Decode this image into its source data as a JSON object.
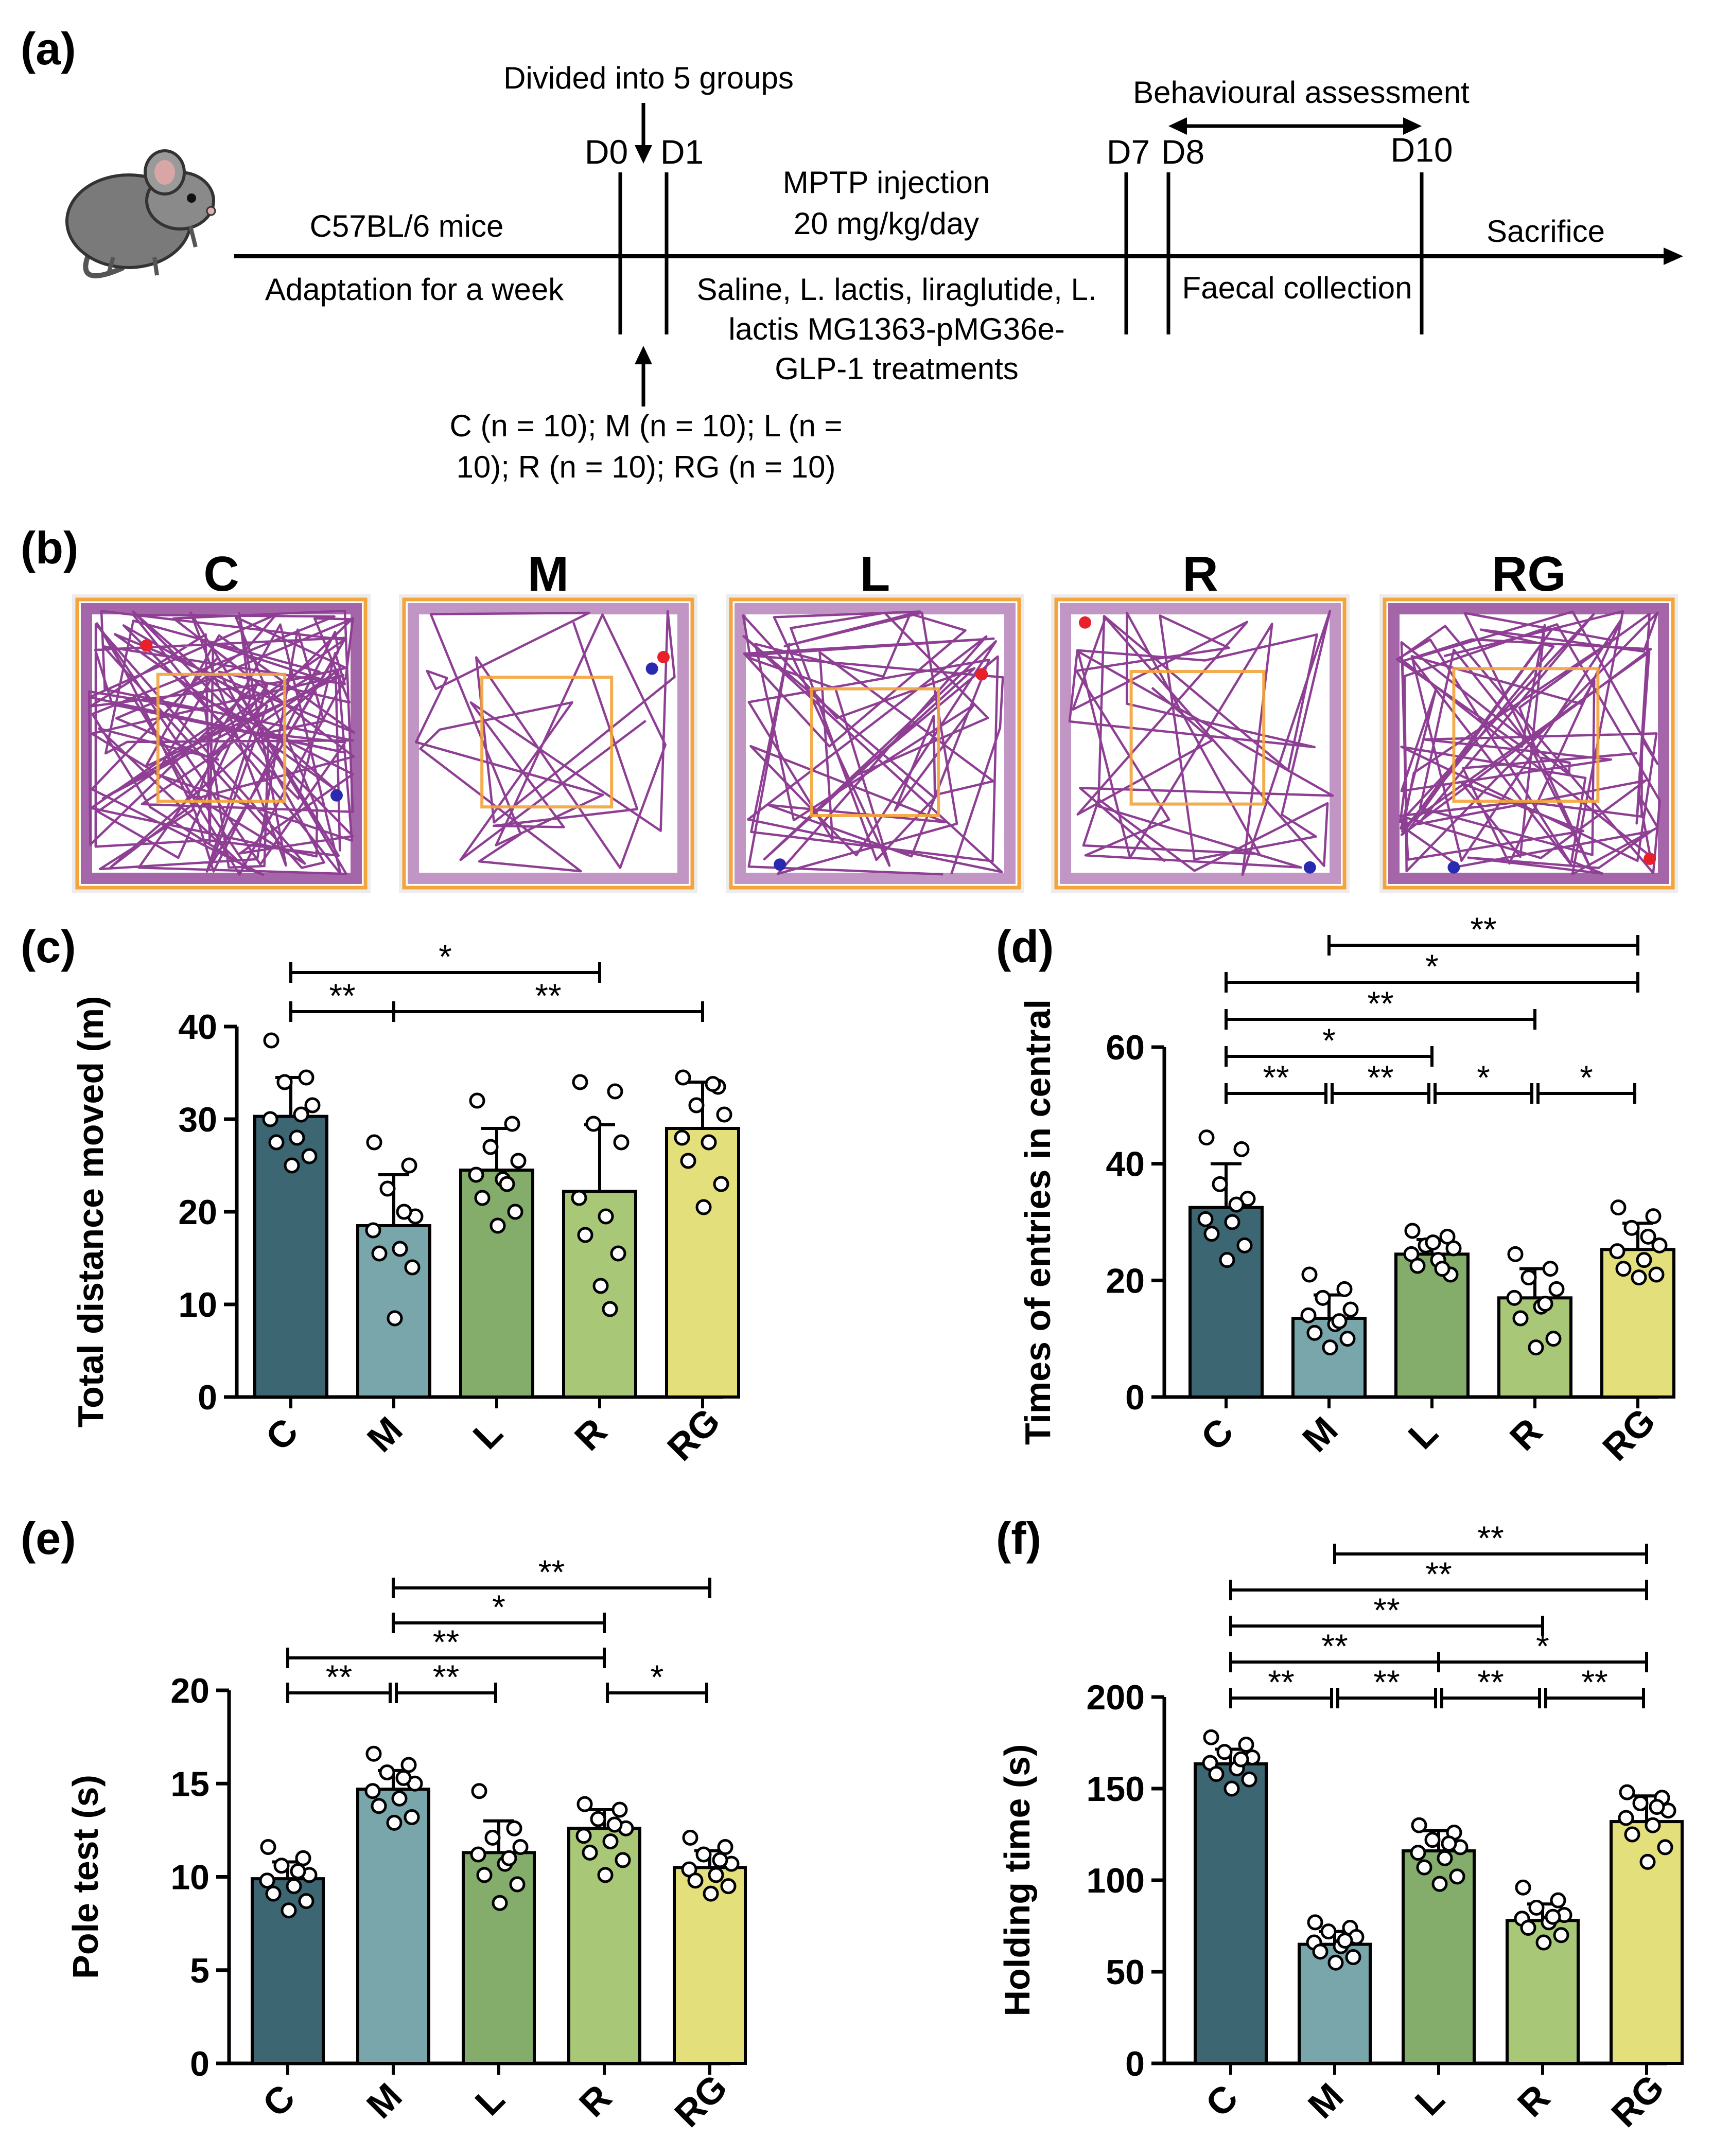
{
  "colors": {
    "C": "#3b6672",
    "M": "#79a6aa",
    "L": "#84ad6b",
    "R": "#a8c877",
    "RG": "#e3e07c",
    "track": "#8e3f94",
    "arena": "#f3a43b",
    "arenaBg": "#ececec"
  },
  "panel_a": {
    "label": "(a)",
    "divided": "Divided into 5 groups",
    "days": {
      "d0": "D0",
      "d1": "D1",
      "d7": "D7",
      "d8": "D8",
      "d10": "D10"
    },
    "behav": "Behavioural assessment",
    "mptp1": "MPTP injection",
    "mptp2": "20 mg/kg/day",
    "c57": "C57BL/6 mice",
    "adapt": "Adaptation for a week",
    "sacrifice": "Sacrifice",
    "faecal": "Faecal collection",
    "treat1": "Saline, L. lactis, liraglutide, L.",
    "treat2": "lactis MG1363-pMG36e-",
    "treat3": "GLP-1 treatments",
    "groups1": "C (n = 10); M (n = 10); L (n =",
    "groups2": "10); R (n = 10); RG (n = 10)",
    "mouse_icon": "mouse-icon"
  },
  "panel_b": {
    "label": "(b)",
    "groups": [
      "C",
      "M",
      "L",
      "R",
      "RG"
    ]
  },
  "chart_data": [
    {
      "id": "c",
      "panel": "(c)",
      "type": "bar",
      "ylabel": "Total distance moved (m)",
      "ylim": [
        0,
        40
      ],
      "ticks": [
        0,
        10,
        20,
        30,
        40
      ],
      "categories": [
        "C",
        "M",
        "L",
        "R",
        "RG"
      ],
      "values": [
        30.3,
        18.5,
        24.5,
        22.2,
        29.0
      ],
      "errors": [
        4.2,
        5.5,
        4.5,
        7.2,
        5.0
      ],
      "points": [
        [
          38.5,
          34.5,
          34.0,
          31.5,
          30.0,
          28.0,
          27.5,
          26.0,
          25.0,
          30.5
        ],
        [
          27.5,
          25.0,
          22.5,
          19.5,
          18.0,
          16.0,
          15.5,
          14.0,
          8.5,
          20.0
        ],
        [
          32.0,
          29.5,
          27.0,
          25.5,
          24.0,
          23.5,
          21.5,
          20.0,
          18.5,
          23.0
        ],
        [
          34.0,
          33.0,
          29.5,
          27.5,
          21.5,
          19.5,
          17.5,
          15.5,
          12.0,
          9.5
        ],
        [
          34.5,
          33.5,
          31.5,
          30.5,
          28.0,
          27.5,
          25.5,
          23.0,
          20.5,
          33.8
        ]
      ],
      "sig": [
        {
          "from": 0,
          "to": 3,
          "label": "*"
        },
        {
          "from": 0,
          "to": 1,
          "label": "**"
        },
        {
          "from": 1,
          "to": 4,
          "label": "**"
        }
      ]
    },
    {
      "id": "d",
      "panel": "(d)",
      "type": "bar",
      "ylabel": "Times of entries in central",
      "ylim": [
        0,
        60
      ],
      "ticks": [
        0,
        20,
        40,
        60
      ],
      "categories": [
        "C",
        "M",
        "L",
        "R",
        "RG"
      ],
      "values": [
        32.5,
        13.5,
        24.5,
        17.0,
        25.3
      ],
      "errors": [
        7.5,
        4.0,
        2.5,
        5.0,
        4.5
      ],
      "points": [
        [
          44.5,
          42.5,
          36.5,
          34.0,
          30.5,
          30.0,
          28.0,
          26.0,
          23.5,
          33.0
        ],
        [
          21.0,
          18.5,
          17.0,
          15.0,
          14.0,
          12.5,
          11.0,
          10.0,
          8.5,
          13.0
        ],
        [
          28.5,
          27.5,
          26.0,
          25.5,
          24.5,
          23.5,
          22.5,
          21.0,
          26.5,
          22.0
        ],
        [
          24.5,
          22.0,
          20.5,
          18.5,
          17.0,
          15.5,
          13.5,
          10.0,
          8.5,
          16.0
        ],
        [
          32.5,
          31.0,
          29.0,
          26.0,
          25.0,
          23.5,
          22.0,
          21.0,
          20.5,
          27.5
        ]
      ],
      "sig": [
        {
          "from": 1,
          "to": 4,
          "label": "**"
        },
        {
          "from": 0,
          "to": 4,
          "label": "*"
        },
        {
          "from": 0,
          "to": 3,
          "label": "**"
        },
        {
          "from": 0,
          "to": 2,
          "label": "*"
        },
        {
          "from": 0,
          "to": 1,
          "label": "**"
        },
        {
          "from": 1,
          "to": 2,
          "label": "**"
        },
        {
          "from": 2,
          "to": 3,
          "label": "*"
        },
        {
          "from": 3,
          "to": 4,
          "label": "*"
        }
      ]
    },
    {
      "id": "e",
      "panel": "(e)",
      "type": "bar",
      "ylabel": "Pole test (s)",
      "ylim": [
        0,
        20
      ],
      "ticks": [
        0,
        5,
        10,
        15,
        20
      ],
      "categories": [
        "C",
        "M",
        "L",
        "R",
        "RG"
      ],
      "values": [
        9.9,
        14.7,
        11.3,
        12.6,
        10.5
      ],
      "errors": [
        0.9,
        1.0,
        1.7,
        1.0,
        0.9
      ],
      "points": [
        [
          11.6,
          11.0,
          10.6,
          10.1,
          9.8,
          9.5,
          9.1,
          8.7,
          8.2,
          10.3
        ],
        [
          16.6,
          16.0,
          15.6,
          15.0,
          14.6,
          14.2,
          13.8,
          13.2,
          12.9,
          15.3
        ],
        [
          14.6,
          12.6,
          12.1,
          11.6,
          11.2,
          10.7,
          10.1,
          9.6,
          8.6,
          11.0
        ],
        [
          13.9,
          13.6,
          13.1,
          12.6,
          12.2,
          11.9,
          11.3,
          10.9,
          10.1,
          12.8
        ],
        [
          12.1,
          11.6,
          11.2,
          10.7,
          10.4,
          10.1,
          9.8,
          9.5,
          9.1,
          10.9
        ]
      ],
      "sig": [
        {
          "from": 1,
          "to": 4,
          "label": "**"
        },
        {
          "from": 1,
          "to": 3,
          "label": "*"
        },
        {
          "from": 0,
          "to": 3,
          "label": "**"
        },
        {
          "from": 0,
          "to": 1,
          "label": "**"
        },
        {
          "from": 1,
          "to": 2,
          "label": "**"
        },
        {
          "from": 3,
          "to": 4,
          "label": "*"
        }
      ]
    },
    {
      "id": "f",
      "panel": "(f)",
      "type": "bar",
      "ylabel": "Holding time (s)",
      "ylim": [
        0,
        200
      ],
      "ticks": [
        0,
        50,
        100,
        150,
        200
      ],
      "categories": [
        "C",
        "M",
        "L",
        "R",
        "RG"
      ],
      "values": [
        163.5,
        65.0,
        116.0,
        78.0,
        132.0
      ],
      "errors": [
        8.0,
        7.0,
        11.0,
        9.0,
        14.0
      ],
      "points": [
        [
          178,
          174,
          170,
          167,
          164,
          161,
          158,
          155,
          150,
          166
        ],
        [
          77,
          74,
          72,
          69,
          66,
          64,
          61,
          58,
          55,
          67
        ],
        [
          130,
          126,
          122,
          118,
          115,
          112,
          107,
          102,
          98,
          120
        ],
        [
          96,
          89,
          85,
          81,
          79,
          77,
          74,
          70,
          66,
          80
        ],
        [
          148,
          145,
          142,
          138,
          134,
          130,
          125,
          118,
          110,
          140
        ]
      ],
      "sig": [
        {
          "from": 1,
          "to": 4,
          "label": "**"
        },
        {
          "from": 0,
          "to": 4,
          "label": "**"
        },
        {
          "from": 0,
          "to": 3,
          "label": "**"
        },
        {
          "from": 0,
          "to": 2,
          "label": "**"
        },
        {
          "from": 2,
          "to": 4,
          "label": "*"
        },
        {
          "from": 0,
          "to": 1,
          "label": "**"
        },
        {
          "from": 1,
          "to": 2,
          "label": "**"
        },
        {
          "from": 2,
          "to": 3,
          "label": "**"
        },
        {
          "from": 3,
          "to": 4,
          "label": "**"
        }
      ]
    }
  ]
}
